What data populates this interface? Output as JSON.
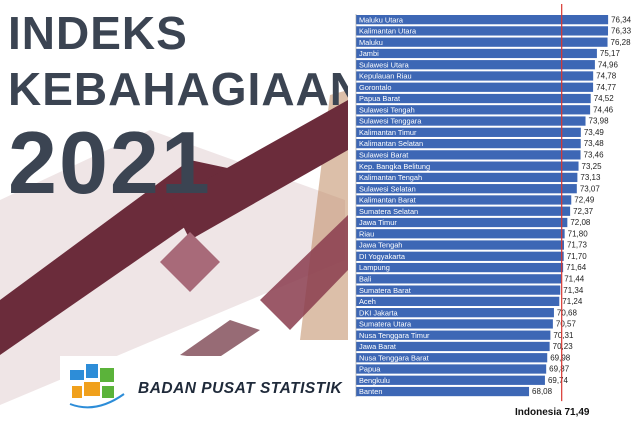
{
  "cover": {
    "title_line1": "INDEKS",
    "title_line2": "KEBAHAGIAAN",
    "year": "2021",
    "organization": "BADAN PUSAT STATISTIK",
    "colors": {
      "title": "#3b4452",
      "maroon": "#6b2c3b",
      "mauve": "#a86a79",
      "bar": "#3d67b5",
      "reference_line": "#d9362f"
    },
    "icons": [
      "bps-logo-icon"
    ]
  },
  "national": {
    "label": "Indonesia",
    "value": "71,49"
  },
  "chart_data": {
    "type": "bar",
    "orientation": "horizontal",
    "categories": [
      "Maluku Utara",
      "Kalimantan Utara",
      "Maluku",
      "Jambi",
      "Sulawesi Utara",
      "Kepulauan Riau",
      "Gorontalo",
      "Papua Barat",
      "Sulawesi Tengah",
      "Sulawesi Tenggara",
      "Kalimantan Timur",
      "Kalimantan Selatan",
      "Sulawesi Barat",
      "Kep. Bangka Belitung",
      "Kalimantan Tengah",
      "Sulawesi Selatan",
      "Kalimantan Barat",
      "Sumatera Selatan",
      "Jawa Timur",
      "Riau",
      "Jawa Tengah",
      "DI Yogyakarta",
      "Lampung",
      "Bali",
      "Sumatera Barat",
      "Aceh",
      "DKI Jakarta",
      "Sumatera Utara",
      "Nusa Tenggara Timur",
      "Jawa Barat",
      "Nusa Tenggara Barat",
      "Papua",
      "Bengkulu",
      "Banten"
    ],
    "values": [
      76.34,
      76.33,
      76.28,
      75.17,
      74.96,
      74.78,
      74.77,
      74.52,
      74.46,
      73.98,
      73.49,
      73.48,
      73.46,
      73.25,
      73.13,
      73.07,
      72.49,
      72.37,
      72.08,
      71.8,
      71.73,
      71.7,
      71.64,
      71.44,
      71.34,
      71.24,
      70.68,
      70.57,
      70.31,
      70.23,
      69.98,
      69.87,
      69.74,
      68.08
    ],
    "value_labels": [
      "76,34",
      "76,33",
      "76,28",
      "75,17",
      "74,96",
      "74,78",
      "74,77",
      "74,52",
      "74,46",
      "73,98",
      "73,49",
      "73,48",
      "73,46",
      "73,25",
      "73,13",
      "73,07",
      "72,49",
      "72,37",
      "72,08",
      "71,80",
      "71,73",
      "71,70",
      "71,64",
      "71,44",
      "71,34",
      "71,24",
      "70,68",
      "70,57",
      "70,31",
      "70,23",
      "69,98",
      "69,87",
      "69,74",
      "68,08"
    ],
    "reference_value": 71.49,
    "xlim": [
      50,
      78
    ],
    "grid": false,
    "legend": "none"
  }
}
